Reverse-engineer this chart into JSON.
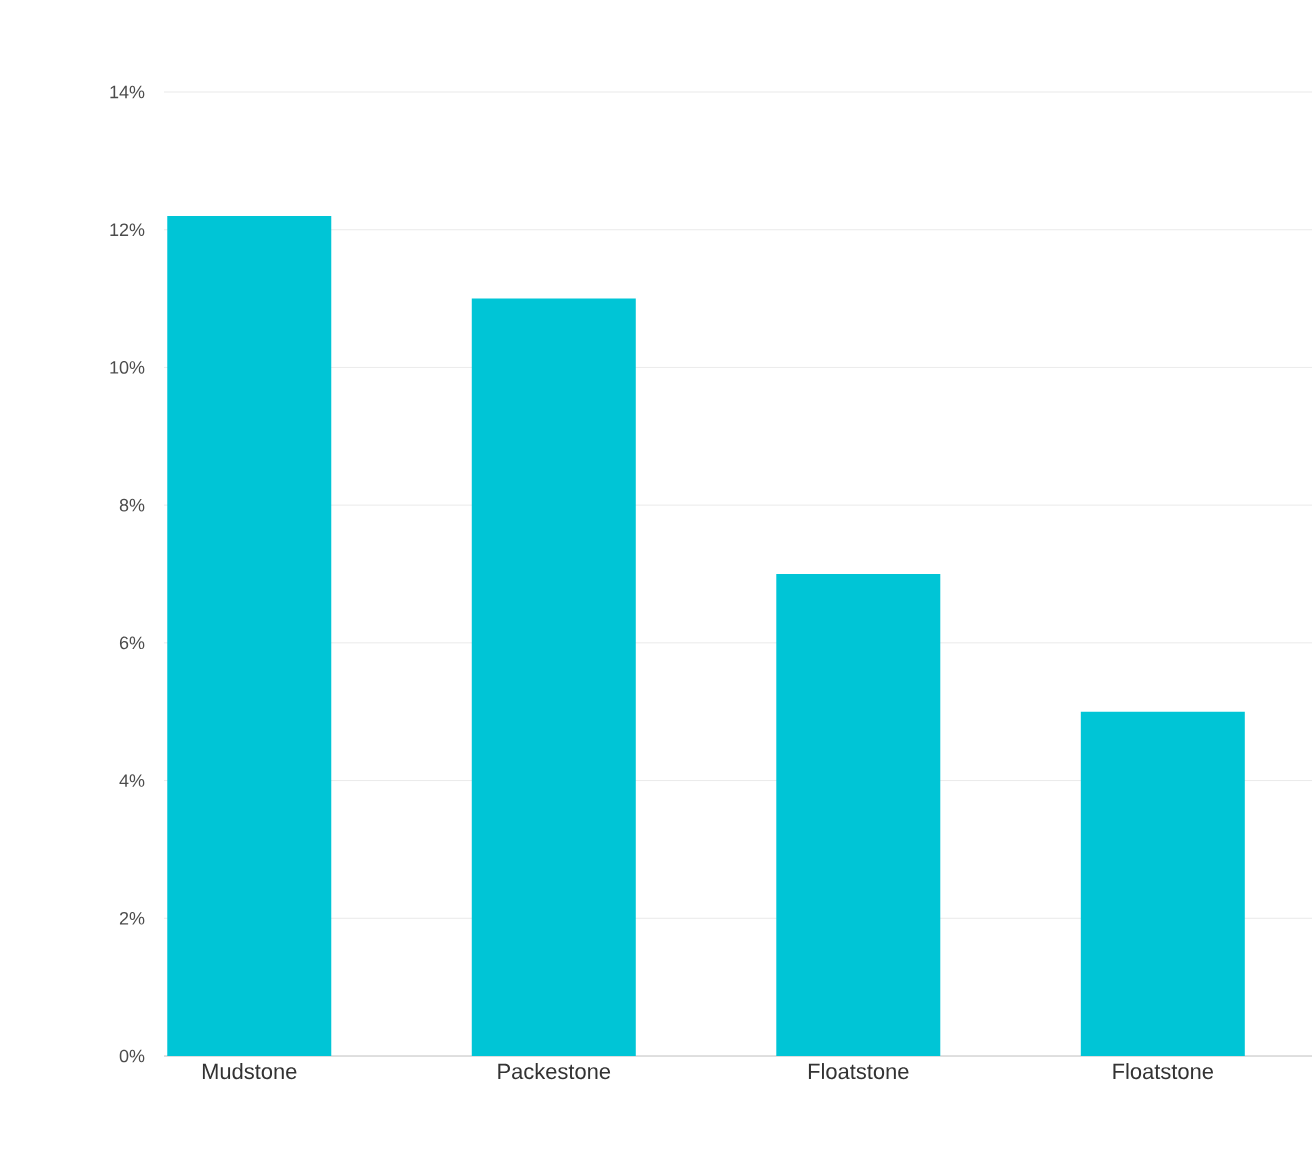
{
  "chart_data": {
    "type": "bar",
    "categories": [
      "Mudstone",
      "Packestone",
      "Floatstone",
      "Floatstone"
    ],
    "values": [
      12.2,
      11,
      7,
      5
    ],
    "color": "#00c5d6",
    "ylim": [
      0,
      14
    ],
    "yticks": [
      {
        "value": 0,
        "label": "0%"
      },
      {
        "value": 2,
        "label": "2%"
      },
      {
        "value": 4,
        "label": "4%"
      },
      {
        "value": 6,
        "label": "6%"
      },
      {
        "value": 8,
        "label": "8%"
      },
      {
        "value": 10,
        "label": "10%"
      },
      {
        "value": 12,
        "label": "12%"
      },
      {
        "value": 14,
        "label": "14%"
      }
    ],
    "grid": "y"
  }
}
